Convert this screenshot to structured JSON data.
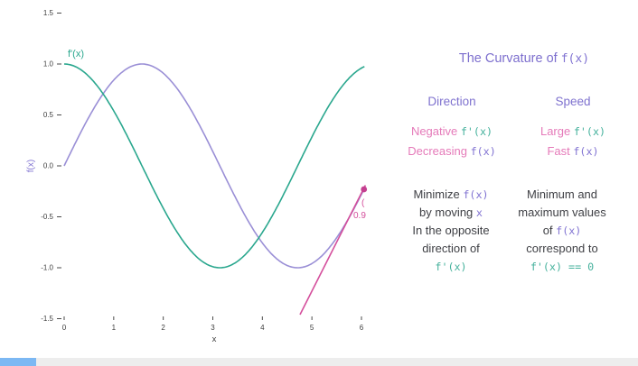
{
  "plot": {
    "ylabel": "f(x)",
    "xlabel": "x",
    "derivative_label": "f'(x)",
    "y_ticks": [
      "1.5",
      "1.0",
      "0.5",
      "0.0",
      "-0.5",
      "-1.0",
      "-1.5"
    ],
    "x_ticks": [
      "0",
      "1",
      "2",
      "3",
      "4",
      "5",
      "6"
    ],
    "tangent_label_line1": "(",
    "tangent_label_line2": "0.9"
  },
  "chart_data": {
    "type": "line",
    "title": "",
    "xlabel": "x",
    "ylabel": "f(x)",
    "xlim": [
      0,
      6.1
    ],
    "ylim": [
      -1.5,
      1.5
    ],
    "grid": false,
    "legend_position": "none",
    "series": [
      {
        "name": "f(x)",
        "fn": "sin",
        "color": "#9a8fd6",
        "x_range": [
          0,
          6.08
        ],
        "x": [
          0,
          0.5,
          1,
          1.5,
          2,
          2.5,
          3,
          3.5,
          4,
          4.5,
          5,
          5.5,
          6
        ],
        "y": [
          0,
          0.48,
          0.84,
          1.0,
          0.91,
          0.6,
          0.14,
          -0.35,
          -0.76,
          -0.98,
          -0.96,
          -0.71,
          -0.28
        ]
      },
      {
        "name": "f'(x)",
        "fn": "cos",
        "color": "#2aa78e",
        "x_range": [
          0,
          6.08
        ],
        "x": [
          0,
          0.5,
          1,
          1.5,
          2,
          2.5,
          3,
          3.5,
          4,
          4.5,
          5,
          5.5,
          6
        ],
        "y": [
          1,
          0.88,
          0.54,
          0.07,
          -0.42,
          -0.8,
          -0.99,
          -0.94,
          -0.65,
          -0.21,
          0.28,
          0.71,
          0.96
        ]
      }
    ],
    "annotations": {
      "point": {
        "x": 6.05,
        "y": -0.23,
        "color": "#c43f90"
      },
      "tangent_line": {
        "x1": 4.76,
        "y1": -1.46,
        "x2": 6.08,
        "y2": -0.19,
        "color": "#d44f9c"
      }
    }
  },
  "panel": {
    "title_segments": [
      {
        "t": "The Curvature of ",
        "s": "purple"
      },
      {
        "t": "f(x)",
        "s": "mono-purple"
      }
    ],
    "columns": [
      {
        "header": "Direction",
        "rows": [
          [
            {
              "t": "Negative ",
              "s": "pink"
            },
            {
              "t": "f'(x)",
              "s": "mono-teal"
            }
          ],
          [
            {
              "t": "Decreasing ",
              "s": "pink"
            },
            {
              "t": "f(x)",
              "s": "mono-purple"
            }
          ]
        ]
      },
      {
        "header": "Speed",
        "rows": [
          [
            {
              "t": "Large ",
              "s": "pink"
            },
            {
              "t": "f'(x)",
              "s": "mono-teal"
            }
          ],
          [
            {
              "t": "Fast ",
              "s": "pink"
            },
            {
              "t": "f(x)",
              "s": "mono-purple"
            }
          ]
        ]
      }
    ],
    "notes": [
      {
        "lines": [
          [
            {
              "t": "Minimize ",
              "s": "dark"
            },
            {
              "t": "f(x)",
              "s": "mono-purple"
            }
          ],
          [
            {
              "t": "by moving ",
              "s": "dark"
            },
            {
              "t": "x",
              "s": "mono-purple"
            }
          ],
          [
            {
              "t": "In the opposite",
              "s": "dark"
            }
          ],
          [
            {
              "t": "direction of",
              "s": "dark"
            }
          ],
          [
            {
              "t": "f'(x)",
              "s": "mono-teal"
            }
          ]
        ]
      },
      {
        "lines": [
          [
            {
              "t": "Minimum and",
              "s": "dark"
            }
          ],
          [
            {
              "t": "maximum values",
              "s": "dark"
            }
          ],
          [
            {
              "t": "of ",
              "s": "dark"
            },
            {
              "t": "f(x)",
              "s": "mono-purple"
            }
          ],
          [
            {
              "t": "correspond to",
              "s": "dark"
            }
          ],
          [
            {
              "t": "f'(x) == 0",
              "s": "mono-teal"
            }
          ]
        ]
      }
    ]
  },
  "progress_bar": {
    "fraction": 0.057,
    "played_color": "#7cb8f3",
    "track_color": "#ededed"
  }
}
